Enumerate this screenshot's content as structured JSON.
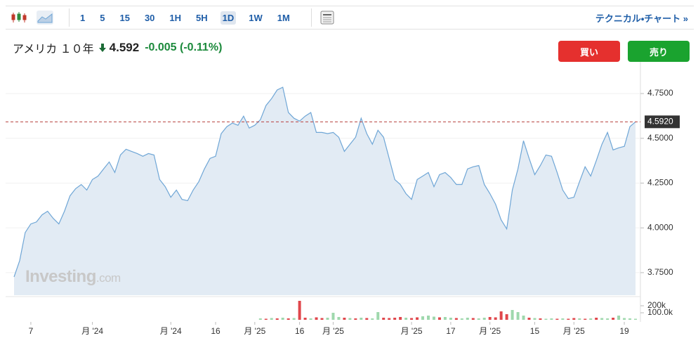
{
  "toolbar": {
    "intervals": [
      "1",
      "5",
      "15",
      "30",
      "1H",
      "5H",
      "1D",
      "1W",
      "1M"
    ],
    "link": "テクニカル・チャート »"
  },
  "header": {
    "name": "アメリカ １０年",
    "price": "4.592",
    "change": "-0.005 (-0.11%)"
  },
  "buttons": {
    "buy": "買い",
    "sell": "売り"
  },
  "watermark": {
    "brand": "Investing",
    "suffix": ".com"
  },
  "chart_data": [
    {
      "type": "area",
      "color": "#6fa6d6",
      "fill": "#e2ebf4",
      "values": [
        3.726,
        3.817,
        3.974,
        4.022,
        4.033,
        4.073,
        4.093,
        4.053,
        4.022,
        4.093,
        4.179,
        4.219,
        4.242,
        4.211,
        4.27,
        4.289,
        4.329,
        4.368,
        4.309,
        4.407,
        4.439,
        4.427,
        4.415,
        4.4,
        4.415,
        4.407,
        4.27,
        4.23,
        4.171,
        4.211,
        4.159,
        4.152,
        4.211,
        4.258,
        4.329,
        4.388,
        4.4,
        4.526,
        4.565,
        4.585,
        4.573,
        4.624,
        4.557,
        4.573,
        4.604,
        4.683,
        4.722,
        4.77,
        4.785,
        4.644,
        4.612,
        4.596,
        4.624,
        4.644,
        4.533,
        4.533,
        4.526,
        4.533,
        4.506,
        4.427,
        4.467,
        4.506,
        4.612,
        4.526,
        4.467,
        4.545,
        4.506,
        4.388,
        4.27,
        4.242,
        4.191,
        4.159,
        4.27,
        4.289,
        4.309,
        4.23,
        4.297,
        4.309,
        4.281,
        4.242,
        4.242,
        4.329,
        4.341,
        4.348,
        4.242,
        4.191,
        4.132,
        4.045,
        3.994,
        4.211,
        4.329,
        4.486,
        4.388,
        4.297,
        4.348,
        4.407,
        4.4,
        4.309,
        4.211,
        4.163,
        4.171,
        4.258,
        4.341,
        4.289,
        4.376,
        4.467,
        4.533,
        4.435,
        4.447,
        4.455,
        4.565,
        4.592
      ],
      "xlim": [
        0,
        111
      ],
      "xticks": [
        {
          "value": 3,
          "label": "7"
        },
        {
          "value": 14,
          "label": "月 '24"
        },
        {
          "value": 28,
          "label": "月 '24"
        },
        {
          "value": 36,
          "label": "16"
        },
        {
          "value": 43,
          "label": "月 '25"
        },
        {
          "value": 51,
          "label": "16"
        },
        {
          "value": 57,
          "label": "月 '25"
        },
        {
          "value": 71,
          "label": "月 '25"
        },
        {
          "value": 78,
          "label": "17"
        },
        {
          "value": 85,
          "label": "月 '25"
        },
        {
          "value": 93,
          "label": "15"
        },
        {
          "value": 100,
          "label": "月 '25"
        },
        {
          "value": 109,
          "label": "19"
        }
      ],
      "ylim": [
        3.624,
        4.919
      ],
      "yticks": [
        {
          "value": 3.75,
          "label": "3.7500"
        },
        {
          "value": 4.0,
          "label": "4.0000"
        },
        {
          "value": 4.25,
          "label": "4.2500"
        },
        {
          "value": 4.5,
          "label": "4.5000"
        },
        {
          "value": 4.75,
          "label": "4.7500"
        }
      ],
      "grid": true,
      "price_line": {
        "value": 4.592,
        "label": "4.5920",
        "color": "#b8403f"
      }
    },
    {
      "type": "bar",
      "x": [
        44,
        45,
        46,
        47,
        48,
        49,
        50,
        51,
        52,
        53,
        54,
        55,
        56,
        57,
        58,
        59,
        60,
        61,
        62,
        63,
        64,
        65,
        66,
        67,
        68,
        69,
        70,
        71,
        72,
        73,
        74,
        75,
        76,
        77,
        78,
        79,
        80,
        81,
        82,
        83,
        84,
        85,
        86,
        87,
        88,
        89,
        90,
        91,
        92,
        93,
        94,
        95,
        96,
        97,
        98,
        99,
        100,
        101,
        102,
        103,
        104,
        105,
        106,
        107,
        108,
        109,
        110,
        111
      ],
      "values": [
        20000,
        15000,
        25000,
        20000,
        30000,
        20000,
        25000,
        270000,
        30000,
        20000,
        35000,
        25000,
        30000,
        100000,
        40000,
        30000,
        25000,
        20000,
        30000,
        25000,
        20000,
        110000,
        30000,
        25000,
        30000,
        40000,
        30000,
        25000,
        35000,
        50000,
        60000,
        45000,
        35000,
        40000,
        30000,
        25000,
        20000,
        30000,
        25000,
        20000,
        30000,
        40000,
        35000,
        120000,
        80000,
        140000,
        110000,
        60000,
        30000,
        25000,
        20000,
        15000,
        20000,
        15000,
        20000,
        15000,
        25000,
        20000,
        15000,
        20000,
        30000,
        25000,
        20000,
        30000,
        60000,
        25000,
        20000,
        15000
      ],
      "colors": [
        "#9fd8ad",
        "#e0474c",
        "#9fd8ad",
        "#e0474c",
        "#9fd8ad",
        "#e0474c",
        "#9fd8ad",
        "#e0474c",
        "#e0474c",
        "#9fd8ad",
        "#e0474c",
        "#e0474c",
        "#9fd8ad",
        "#9fd8ad",
        "#9fd8ad",
        "#e0474c",
        "#9fd8ad",
        "#e0474c",
        "#9fd8ad",
        "#e0474c",
        "#9fd8ad",
        "#9fd8ad",
        "#e0474c",
        "#e0474c",
        "#e0474c",
        "#e0474c",
        "#9fd8ad",
        "#e0474c",
        "#e0474c",
        "#9fd8ad",
        "#9fd8ad",
        "#9fd8ad",
        "#e0474c",
        "#9fd8ad",
        "#9fd8ad",
        "#e0474c",
        "#9fd8ad",
        "#9fd8ad",
        "#e0474c",
        "#9fd8ad",
        "#9fd8ad",
        "#e0474c",
        "#e0474c",
        "#e0474c",
        "#e0474c",
        "#9fd8ad",
        "#9fd8ad",
        "#9fd8ad",
        "#e0474c",
        "#9fd8ad",
        "#e0474c",
        "#9fd8ad",
        "#9fd8ad",
        "#e0474c",
        "#9fd8ad",
        "#e0474c",
        "#e0474c",
        "#9fd8ad",
        "#e0474c",
        "#9fd8ad",
        "#e0474c",
        "#9fd8ad",
        "#9fd8ad",
        "#e0474c",
        "#9fd8ad",
        "#9fd8ad",
        "#9fd8ad",
        "#9fd8ad"
      ],
      "xlim": [
        0,
        111
      ],
      "ylim": [
        0,
        300000
      ],
      "yticks": [
        {
          "value": 200000,
          "label": "200k"
        },
        {
          "value": 100000,
          "label": "100.0k"
        }
      ]
    }
  ]
}
